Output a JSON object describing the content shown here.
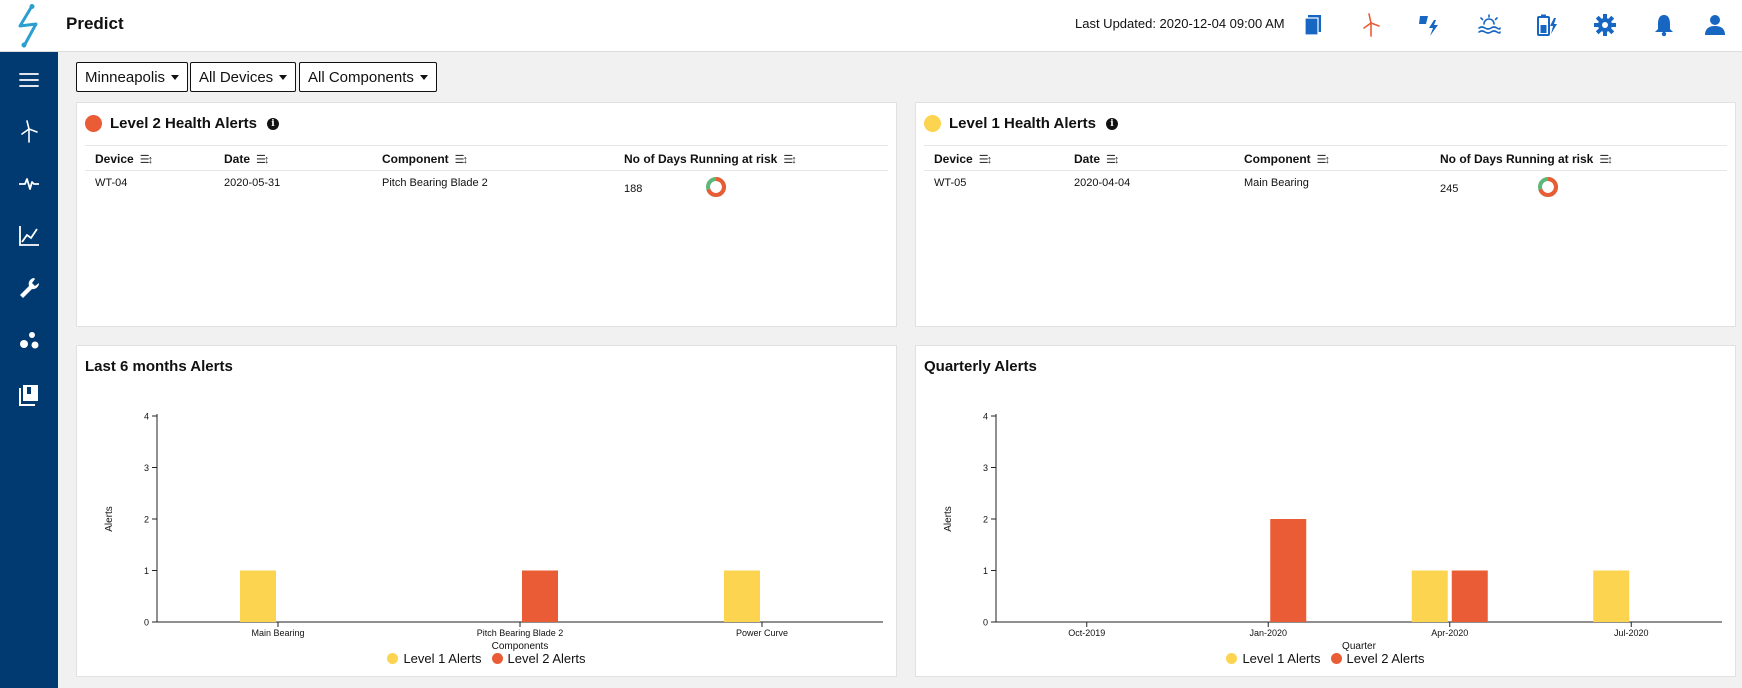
{
  "header": {
    "app_title": "Predict",
    "last_updated": "Last Updated: 2020-12-04 09:00 AM",
    "icons": [
      "document-stack-icon",
      "wind-turbine-icon",
      "solar-lightning-icon",
      "water-sun-icon",
      "battery-charge-icon",
      "gear-icon",
      "bell-icon",
      "user-icon"
    ]
  },
  "sidebar": {
    "icons": [
      "menu-icon",
      "wind-turbine-icon",
      "pulse-icon",
      "line-chart-icon",
      "wrench-icon",
      "scatter-icon",
      "book-icon"
    ]
  },
  "filters": {
    "site": "Minneapolis",
    "devices": "All Devices",
    "components": "All Components"
  },
  "colors": {
    "level1": "#fdd44f",
    "level2": "#e95c35",
    "sidebar": "#003a70",
    "accent": "#1766c2"
  },
  "level2_card": {
    "title": "Level 2 Health Alerts",
    "columns": [
      "Device",
      "Date",
      "Component",
      "No of Days Running at risk"
    ],
    "rows": [
      {
        "device": "WT-04",
        "date": "2020-05-31",
        "component": "Pitch Bearing Blade 2",
        "days": "188"
      }
    ]
  },
  "level1_card": {
    "title": "Level 1 Health Alerts",
    "columns": [
      "Device",
      "Date",
      "Component",
      "No of Days Running at risk"
    ],
    "rows": [
      {
        "device": "WT-05",
        "date": "2020-04-04",
        "component": "Main Bearing",
        "days": "245"
      }
    ]
  },
  "chart_data": [
    {
      "type": "bar",
      "title": "Last 6 months Alerts",
      "xlabel": "Components",
      "ylabel": "Alerts",
      "ylim": [
        0,
        4
      ],
      "yticks": [
        "0",
        "1",
        "2",
        "3",
        "4"
      ],
      "categories": [
        "Main Bearing",
        "Pitch Bearing Blade 2",
        "Power Curve"
      ],
      "series": [
        {
          "name": "Level 1 Alerts",
          "values": [
            1,
            0,
            1
          ]
        },
        {
          "name": "Level 2 Alerts",
          "values": [
            0,
            1,
            0
          ]
        }
      ],
      "grid": false,
      "legend": "bottom"
    },
    {
      "type": "bar",
      "title": "Quarterly Alerts",
      "xlabel": "Quarter",
      "ylabel": "Alerts",
      "ylim": [
        0,
        4
      ],
      "yticks": [
        "0",
        "1",
        "2",
        "3",
        "4"
      ],
      "categories": [
        "Oct-2019",
        "Jan-2020",
        "Apr-2020",
        "Jul-2020"
      ],
      "series": [
        {
          "name": "Level 1 Alerts",
          "values": [
            0,
            0,
            1,
            1
          ]
        },
        {
          "name": "Level 2 Alerts",
          "values": [
            0,
            2,
            1,
            0
          ]
        }
      ],
      "grid": false,
      "legend": "bottom"
    }
  ]
}
